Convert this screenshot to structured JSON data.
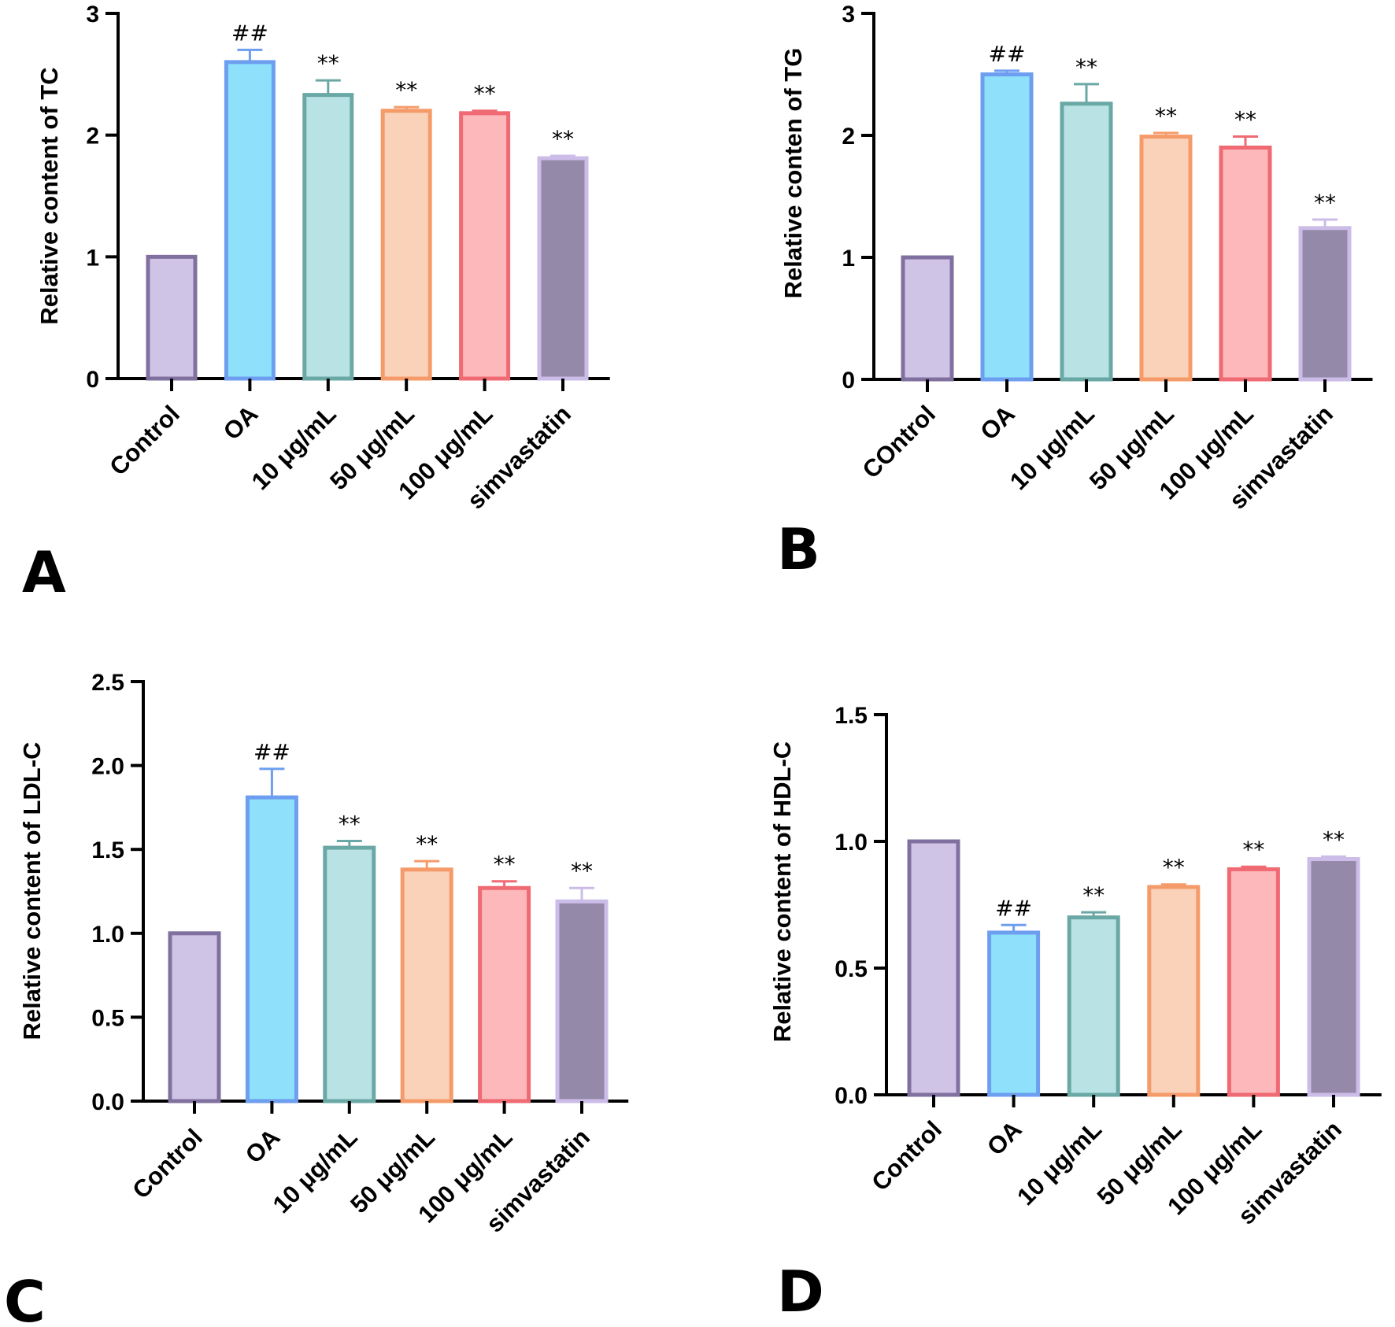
{
  "figure": {
    "panels": [
      "A",
      "B",
      "C",
      "D"
    ]
  },
  "chart_data": [
    {
      "panel": "A",
      "type": "bar",
      "title": "",
      "xlabel": "",
      "ylabel": "Relative content of TC",
      "ylim": [
        0,
        3
      ],
      "yticks": [
        0,
        1,
        2,
        3
      ],
      "ytick_labels": [
        "0",
        "1",
        "2",
        "3"
      ],
      "categories": [
        "Control",
        "OA",
        "10 μg/mL",
        "50 μg/mL",
        "100 μg/mL",
        "simvastatin"
      ],
      "values": [
        1.0,
        2.6,
        2.33,
        2.2,
        2.18,
        1.81
      ],
      "errors": [
        0,
        0.1,
        0.12,
        0.03,
        0.02,
        0.02
      ],
      "significance": [
        "",
        "##",
        "**",
        "**",
        "**",
        "**"
      ]
    },
    {
      "panel": "B",
      "type": "bar",
      "title": "",
      "xlabel": "",
      "ylabel": "Relative conten of TG",
      "ylim": [
        0,
        3
      ],
      "yticks": [
        0,
        1,
        2,
        3
      ],
      "ytick_labels": [
        "0",
        "1",
        "2",
        "3"
      ],
      "categories": [
        "COntrol",
        "OA",
        "10 μg/mL",
        "50 μg/mL",
        "100 μg/mL",
        "simvastatin"
      ],
      "values": [
        1.0,
        2.5,
        2.26,
        1.99,
        1.9,
        1.24
      ],
      "errors": [
        0,
        0.03,
        0.16,
        0.03,
        0.09,
        0.07
      ],
      "significance": [
        "",
        "##",
        "**",
        "**",
        "**",
        "**"
      ]
    },
    {
      "panel": "C",
      "type": "bar",
      "title": "",
      "xlabel": "",
      "ylabel": "Relative content of LDL-C",
      "ylim": [
        0,
        2.5
      ],
      "yticks": [
        0,
        0.5,
        1.0,
        1.5,
        2.0,
        2.5
      ],
      "ytick_labels": [
        "0.0",
        "0.5",
        "1.0",
        "1.5",
        "2.0",
        "2.5"
      ],
      "categories": [
        "Control",
        "OA",
        "10 μg/mL",
        "50 μg/mL",
        "100 μg/mL",
        "simvastatin"
      ],
      "values": [
        1.0,
        1.81,
        1.51,
        1.38,
        1.27,
        1.19
      ],
      "errors": [
        0,
        0.17,
        0.04,
        0.05,
        0.04,
        0.08
      ],
      "significance": [
        "",
        "##",
        "**",
        "**",
        "**",
        "**"
      ]
    },
    {
      "panel": "D",
      "type": "bar",
      "title": "",
      "xlabel": "",
      "ylabel": "Relative content of HDL-C",
      "ylim": [
        0,
        1.5
      ],
      "yticks": [
        0,
        0.5,
        1.0,
        1.5
      ],
      "ytick_labels": [
        "0.0",
        "0.5",
        "1.0",
        "1.5"
      ],
      "categories": [
        "Control",
        "OA",
        "10 μg/mL",
        "50 μg/mL",
        "100 μg/mL",
        "simvastatin"
      ],
      "values": [
        1.0,
        0.64,
        0.7,
        0.82,
        0.89,
        0.93
      ],
      "errors": [
        0,
        0.03,
        0.02,
        0.01,
        0.01,
        0.01
      ],
      "significance": [
        "",
        "##",
        "**",
        "**",
        "**",
        "**"
      ]
    }
  ],
  "colors": {
    "fills": [
      "#cfc3e6",
      "#8ee0fb",
      "#b8e2e4",
      "#fad2b9",
      "#fdb8bb",
      "#9489a8"
    ],
    "strokes": [
      "#80709f",
      "#6d9ef0",
      "#6aa8a6",
      "#f59b6a",
      "#ef6a72",
      "#cbbce8"
    ]
  }
}
